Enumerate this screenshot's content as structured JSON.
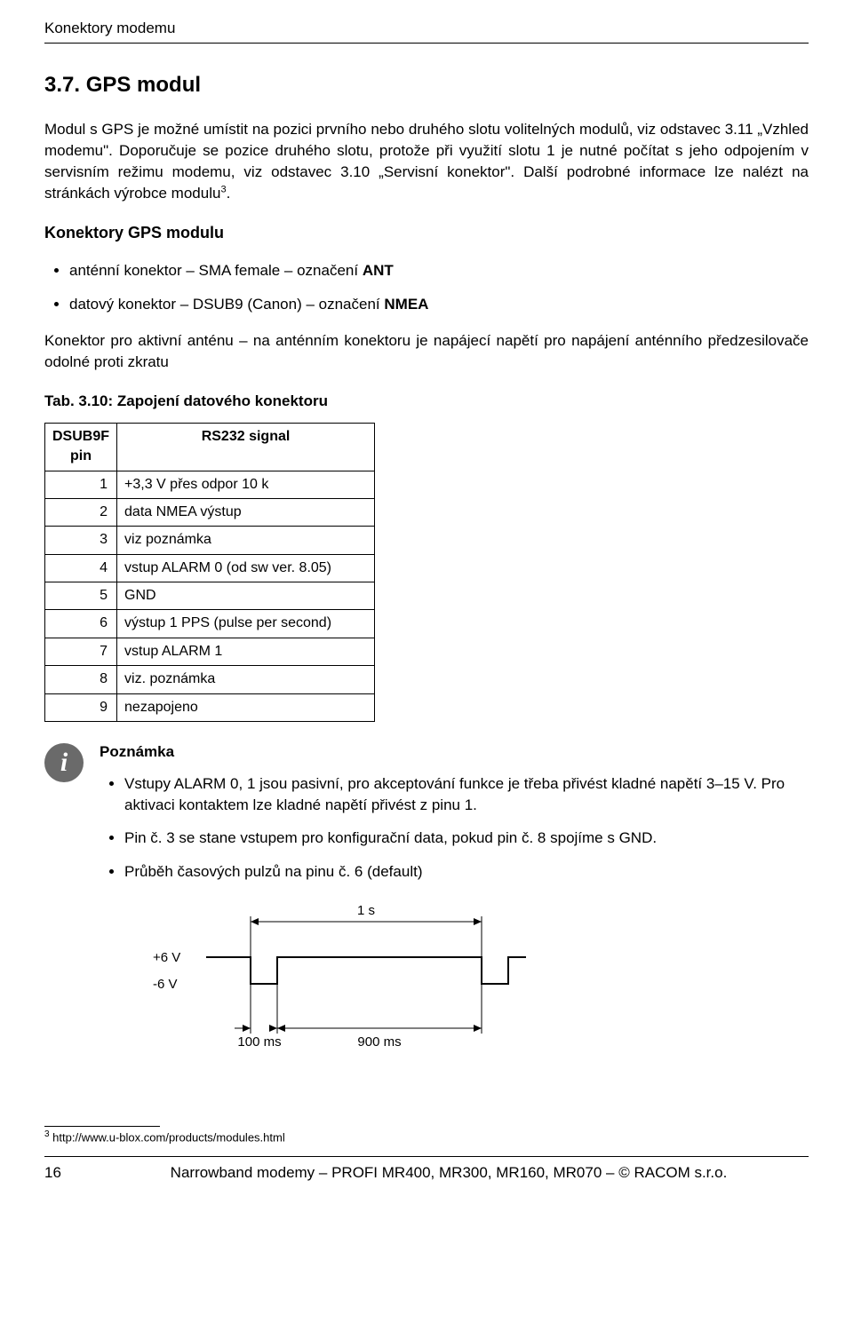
{
  "header": {
    "title": "Konektory modemu"
  },
  "section": {
    "number": "3.7.",
    "title": "GPS modul",
    "para1_a": "Modul s GPS je možné umístit na pozici prvního nebo druhého slotu volitelných modulů, viz odstavec 3.11 „Vzhled modemu\". Doporučuje se pozice druhého slotu, protože při využití slotu 1 je nutné po­čítat s jeho odpojením v servisním režimu modemu, viz odstavec 3.10 „Servisní konektor\". Další po­drobné informace lze nalézt na stránkách výrobce modulu",
    "para1_sup": "3",
    "para1_b": "."
  },
  "connectors": {
    "heading": "Konektory GPS modulu",
    "items": [
      {
        "text_a": "anténní konektor – SMA female – označení ",
        "bold": "ANT"
      },
      {
        "text_a": "datový konektor – DSUB9 (Canon) – označení ",
        "bold": "NMEA"
      }
    ],
    "para2": "Konektor pro aktivní anténu – na anténním konektoru je napájecí napětí pro napájení anténního před­zesilovače odolné proti zkratu"
  },
  "table": {
    "caption": "Tab. 3.10: Zapojení datového konektoru",
    "col1": "DSUB9F pin",
    "col2": "RS232 signal",
    "rows": [
      {
        "pin": "1",
        "sig": "+3,3 V přes odpor 10 k"
      },
      {
        "pin": "2",
        "sig": "data NMEA výstup"
      },
      {
        "pin": "3",
        "sig": "viz poznámka"
      },
      {
        "pin": "4",
        "sig": "vstup ALARM 0 (od sw ver. 8.05)"
      },
      {
        "pin": "5",
        "sig": "GND"
      },
      {
        "pin": "6",
        "sig": "výstup 1 PPS (pulse per second)"
      },
      {
        "pin": "7",
        "sig": "vstup ALARM 1"
      },
      {
        "pin": "8",
        "sig": "viz. poznámka"
      },
      {
        "pin": "9",
        "sig": "nezapojeno"
      }
    ]
  },
  "note": {
    "title": "Poznámka",
    "items": [
      "Vstupy ALARM 0, 1 jsou pasivní, pro akceptování funkce je třeba přivést kladné napětí 3–15 V. Pro aktivaci kontaktem lze kladné napětí přivést z pinu 1.",
      "Pin č. 3 se stane vstupem pro konfigurační data, pokud pin č. 8 spojíme s GND.",
      "Průběh časových pulzů na pinu č. 6 (default)"
    ]
  },
  "diagram": {
    "label_1s": "1 s",
    "label_6v": "+6 V",
    "label_m6v": "-6 V",
    "label_100ms": "100 ms",
    "label_900ms": "900 ms",
    "stroke": "#000000",
    "stroke_width": 2,
    "font_size": 15
  },
  "footnote": {
    "sup": "3",
    "text": " http://www.u-blox.com/products/modules.html"
  },
  "footer": {
    "page": "16",
    "center": "Narrowband modemy – PROFI MR400, MR300, MR160, MR070 – © RACOM s.r.o."
  }
}
